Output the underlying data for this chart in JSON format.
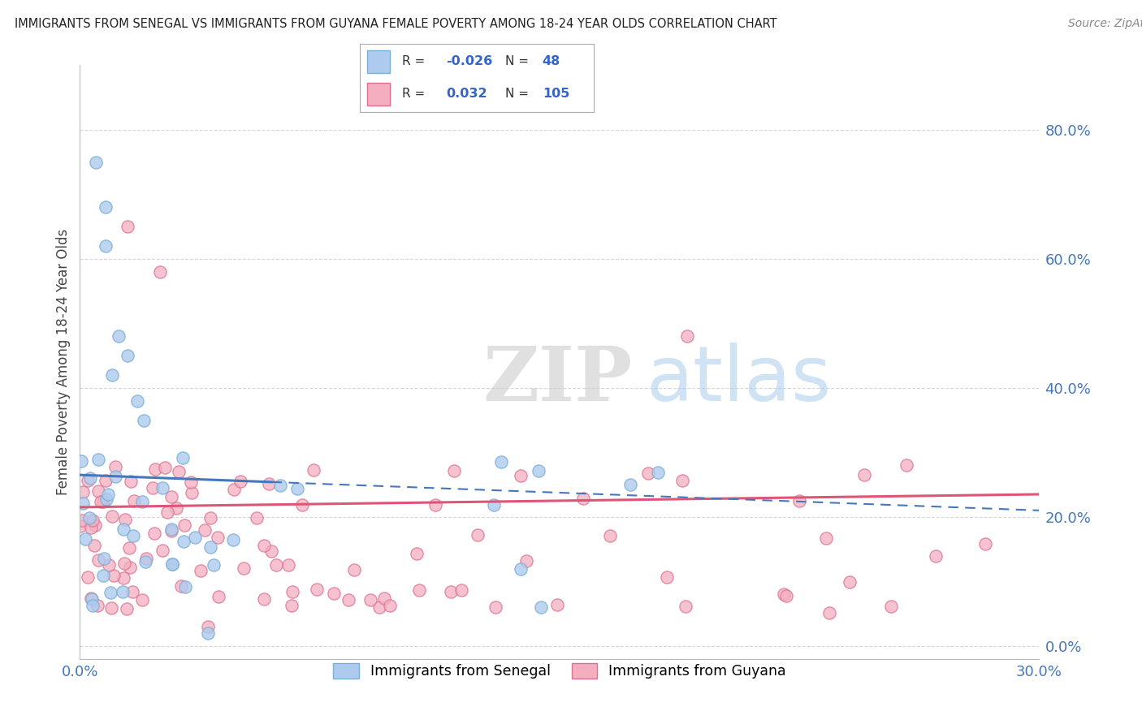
{
  "title": "IMMIGRANTS FROM SENEGAL VS IMMIGRANTS FROM GUYANA FEMALE POVERTY AMONG 18-24 YEAR OLDS CORRELATION CHART",
  "source": "Source: ZipAtlas.com",
  "ylabel": "Female Poverty Among 18-24 Year Olds",
  "watermark_ZIP": "ZIP",
  "watermark_atlas": "atlas",
  "senegal": {
    "label": "Immigrants from Senegal",
    "color": "#aecbee",
    "edge_color": "#7aafd6",
    "line_color": "#4477bb",
    "R": -0.026,
    "N": 48
  },
  "guyana": {
    "label": "Immigrants from Guyana",
    "color": "#f4aec0",
    "edge_color": "#dd7090",
    "line_color": "#dd5577",
    "R": 0.032,
    "N": 105
  },
  "xlim": [
    0.0,
    0.3
  ],
  "ylim": [
    -0.02,
    0.9
  ],
  "plot_ylim": [
    0.0,
    0.9
  ],
  "right_yticks": [
    0.0,
    0.2,
    0.4,
    0.6,
    0.8
  ],
  "right_yticklabels": [
    "0.0%",
    "20.0%",
    "40.0%",
    "60.0%",
    "80.0%"
  ],
  "bg_color": "#ffffff",
  "grid_color": "#cccccc",
  "marker_size": 120,
  "marker_lw": 1.0
}
